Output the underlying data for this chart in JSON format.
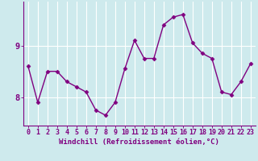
{
  "x": [
    0,
    1,
    2,
    3,
    4,
    5,
    6,
    7,
    8,
    9,
    10,
    11,
    12,
    13,
    14,
    15,
    16,
    17,
    18,
    19,
    20,
    21,
    22,
    23
  ],
  "y": [
    8.6,
    7.9,
    8.5,
    8.5,
    8.3,
    8.2,
    8.1,
    7.75,
    7.65,
    7.9,
    8.55,
    9.1,
    8.75,
    8.75,
    9.4,
    9.55,
    9.6,
    9.05,
    8.85,
    8.75,
    8.1,
    8.05,
    8.3,
    8.65
  ],
  "line_color": "#800080",
  "marker": "D",
  "marker_size": 2.5,
  "line_width": 1.0,
  "bg_color": "#ceeaed",
  "grid_color": "#b0d8de",
  "axis_color": "#800080",
  "xlabel": "Windchill (Refroidissement éolien,°C)",
  "xlabel_fontsize": 6.5,
  "yticks": [
    8,
    9
  ],
  "xticks": [
    0,
    1,
    2,
    3,
    4,
    5,
    6,
    7,
    8,
    9,
    10,
    11,
    12,
    13,
    14,
    15,
    16,
    17,
    18,
    19,
    20,
    21,
    22,
    23
  ],
  "xlim": [
    -0.5,
    23.5
  ],
  "ylim": [
    7.45,
    9.85
  ],
  "tick_fontsize": 6.0,
  "ytick_fontsize": 7.5
}
